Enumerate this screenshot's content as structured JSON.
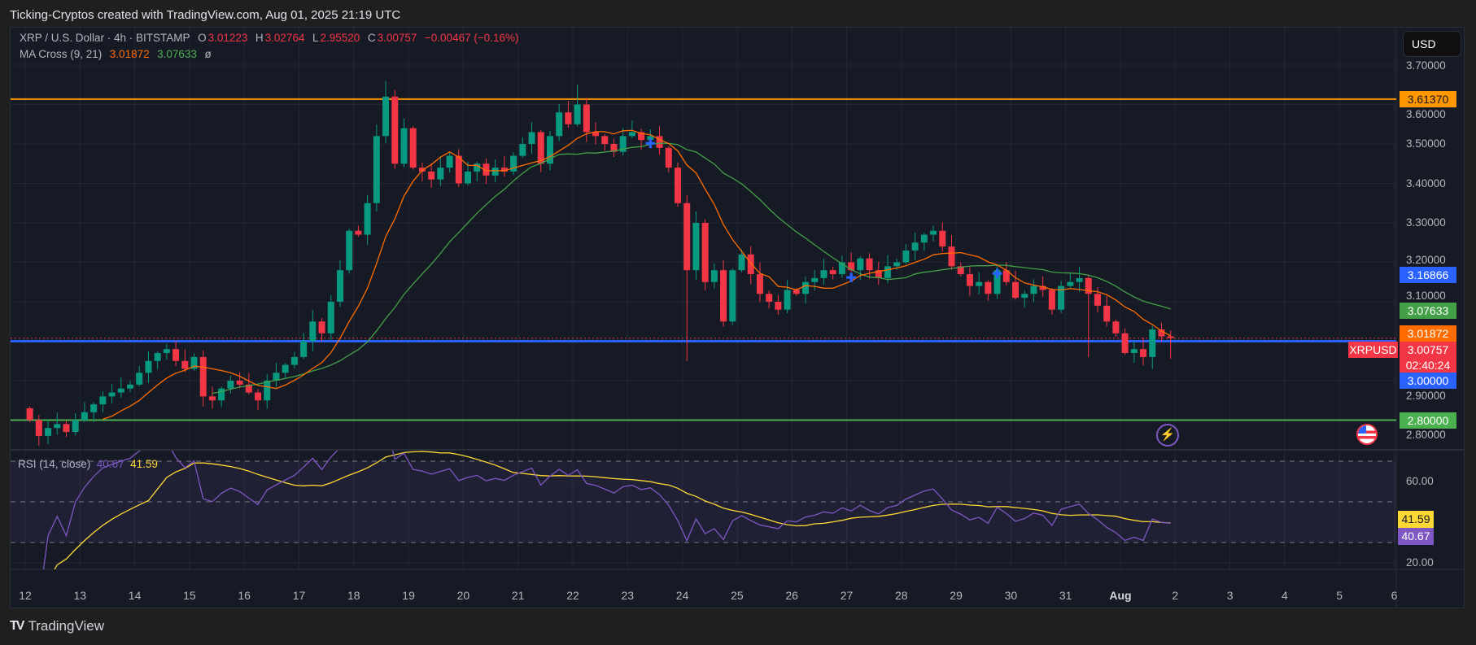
{
  "header": {
    "attribution": "Ticking-Cryptos created with TradingView.com, Aug 01, 2025 21:19 UTC"
  },
  "legend": {
    "symbol": "XRP / U.S. Dollar · 4h · BITSTAMP",
    "o_label": "O",
    "open": "3.01223",
    "h_label": "H",
    "high": "3.02764",
    "l_label": "L",
    "low": "2.95520",
    "c_label": "C",
    "close": "3.00757",
    "change": "−0.00467 (−0.16%)",
    "ma_title": "MA Cross (9, 21)",
    "ma_fast": "3.01872",
    "ma_slow": "3.07633",
    "ma_suffix": "ø"
  },
  "currency_button": "USD",
  "symbol_tag": "XRPUSD",
  "footer": {
    "logo_mark": "TV",
    "brand": "TradingView"
  },
  "rsi_legend": {
    "title": "RSI (14, close)",
    "rsi": "40.67",
    "rsi_ma": "41.59"
  },
  "colors": {
    "up": "#089981",
    "down": "#f23645",
    "ma_fast": "#ff6d00",
    "ma_slow": "#43a047",
    "rsi": "#7e57c2",
    "rsi_ma": "#fdd835",
    "resistance": "#ff9800",
    "support_blue": "#2962ff",
    "support_green": "#4caf50"
  },
  "chart_data": {
    "type": "candlestick",
    "title": "XRP / U.S. Dollar · 4h · BITSTAMP",
    "interval": "4h",
    "start": "Jul 12 00:00",
    "closes": [
      2.8,
      2.76,
      2.78,
      2.79,
      2.77,
      2.8,
      2.82,
      2.84,
      2.86,
      2.87,
      2.88,
      2.89,
      2.92,
      2.95,
      2.97,
      2.98,
      2.95,
      2.93,
      2.96,
      2.86,
      2.85,
      2.88,
      2.9,
      2.89,
      2.87,
      2.85,
      2.9,
      2.92,
      2.94,
      2.96,
      3.0,
      3.05,
      3.02,
      3.1,
      3.18,
      3.28,
      3.27,
      3.35,
      3.52,
      3.62,
      3.45,
      3.54,
      3.44,
      3.43,
      3.41,
      3.44,
      3.47,
      3.4,
      3.43,
      3.45,
      3.42,
      3.44,
      3.43,
      3.47,
      3.5,
      3.53,
      3.45,
      3.52,
      3.58,
      3.55,
      3.6,
      3.53,
      3.52,
      3.5,
      3.48,
      3.52,
      3.53,
      3.51,
      3.52,
      3.49,
      3.44,
      3.35,
      3.18,
      3.3,
      3.15,
      3.18,
      3.05,
      3.18,
      3.22,
      3.17,
      3.12,
      3.1,
      3.08,
      3.13,
      3.12,
      3.15,
      3.16,
      3.18,
      3.17,
      3.2,
      3.18,
      3.21,
      3.18,
      3.16,
      3.19,
      3.2,
      3.23,
      3.25,
      3.27,
      3.28,
      3.24,
      3.19,
      3.17,
      3.14,
      3.15,
      3.12,
      3.18,
      3.15,
      3.11,
      3.12,
      3.14,
      3.13,
      3.08,
      3.14,
      3.15,
      3.16,
      3.12,
      3.09,
      3.05,
      3.02,
      2.97,
      2.98,
      2.96,
      3.03,
      3.01223,
      3.00757
    ],
    "last_candle": {
      "open": 3.01223,
      "high": 3.02764,
      "low": 2.9552,
      "close": 3.00757
    },
    "wick_extremes": [
      {
        "index": 39,
        "high": 3.66
      },
      {
        "index": 60,
        "high": 3.65
      },
      {
        "index": 72,
        "low": 2.95
      },
      {
        "index": 116,
        "low": 2.96
      },
      {
        "index": 123,
        "low": 2.93
      }
    ],
    "ma_periods": [
      9,
      21
    ],
    "rsi_period": 14,
    "horizontal_lines": [
      {
        "price": 3.6137,
        "label": "3.61370",
        "color": "#ff9800"
      },
      {
        "price": 3.0,
        "label": "3.00000",
        "color": "#2962ff"
      },
      {
        "price": 2.8,
        "label": "2.80000",
        "color": "#4caf50"
      }
    ],
    "price_labels": [
      {
        "price": 3.6137,
        "text": "3.61370",
        "bg": "#ff9800",
        "fg": "#131722"
      },
      {
        "price": 3.16866,
        "text": "3.16866",
        "bg": "#2962ff",
        "fg": "#ffffff"
      },
      {
        "price": 3.07633,
        "text": "3.07633",
        "bg": "#43a047",
        "fg": "#ffffff"
      },
      {
        "price": 3.01872,
        "text": "3.01872",
        "bg": "#ff6d00",
        "fg": "#ffffff"
      },
      {
        "price": 3.00757,
        "text": "3.00757",
        "sub": "02:40:24",
        "bg": "#f23645",
        "fg": "#ffffff"
      },
      {
        "price": 3.0,
        "text": "3.00000",
        "bg": "#2962ff",
        "fg": "#ffffff"
      },
      {
        "price": 2.8,
        "text": "2.80000",
        "bg": "#4caf50",
        "fg": "#ffffff"
      }
    ],
    "y_ticks": [
      "3.70000",
      "3.60000",
      "3.50000",
      "3.40000",
      "3.30000",
      "3.20000",
      "3.10000",
      "3.00000",
      "2.90000",
      "2.80000"
    ],
    "rsi_ticks": [
      "60.00",
      "20.00"
    ],
    "rsi_labels": [
      {
        "value": 41.59,
        "text": "41.59",
        "bg": "#fdd835",
        "fg": "#131722"
      },
      {
        "value": 40.67,
        "text": "40.67",
        "bg": "#7e57c2",
        "fg": "#ffffff"
      }
    ],
    "rsi_band": [
      30,
      70
    ],
    "cross_markers": [
      {
        "index": 68,
        "price": 3.5
      },
      {
        "index": 90,
        "price": 3.16
      },
      {
        "index": 106,
        "price": 3.17
      }
    ],
    "x_tick_labels": [
      "12",
      "13",
      "14",
      "15",
      "16",
      "17",
      "18",
      "19",
      "20",
      "21",
      "22",
      "23",
      "24",
      "25",
      "26",
      "27",
      "28",
      "29",
      "30",
      "31",
      "Aug",
      "2",
      "3",
      "4",
      "5",
      "6"
    ]
  }
}
